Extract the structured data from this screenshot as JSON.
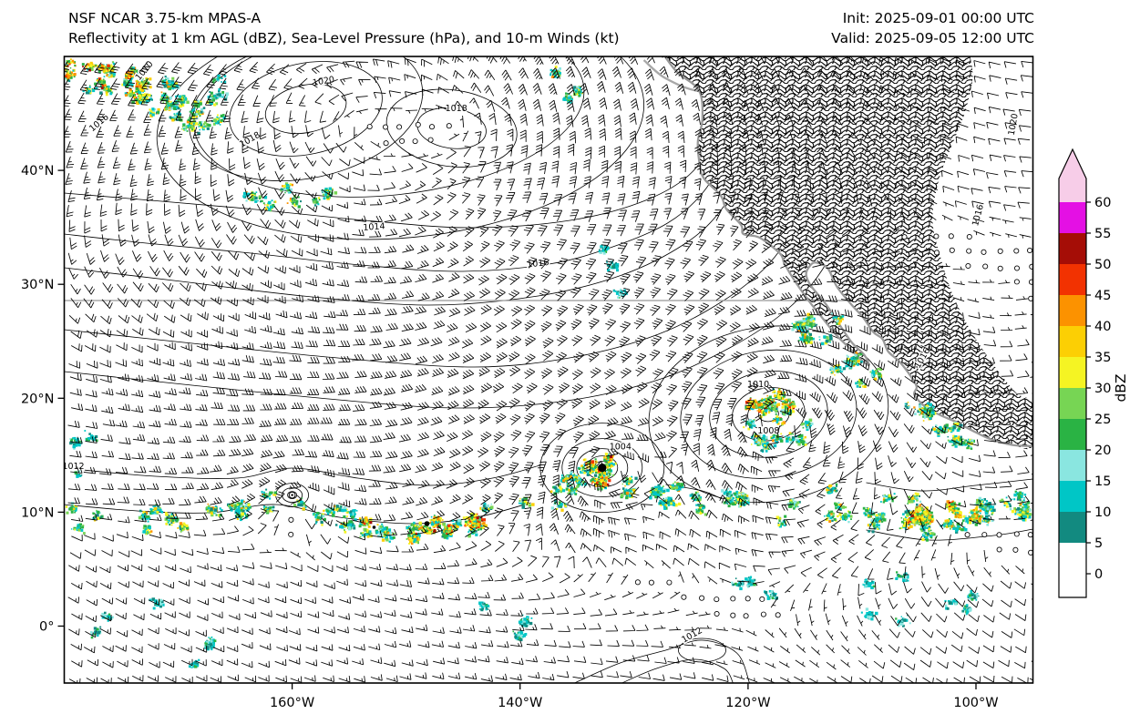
{
  "header": {
    "title_line1": "NSF NCAR 3.75-km MPAS-A",
    "title_line2": "Reflectivity at 1 km AGL (dBZ), Sea-Level Pressure (hPa), and 10-m Winds (kt)",
    "init_label": "Init: 2025-09-01 00:00 UTC",
    "valid_label": "Valid: 2025-09-05 12:00 UTC"
  },
  "chart_data": {
    "type": "heatmap",
    "title": "Reflectivity at 1 km AGL (dBZ), Sea-Level Pressure (hPa), and 10-m Winds (kt)",
    "model": "NSF NCAR 3.75-km MPAS-A",
    "init_time": "2025-09-01 00:00 UTC",
    "valid_time": "2025-09-05 12:00 UTC",
    "map_extent": {
      "lon_min": -180,
      "lon_max": -95,
      "lat_min": -5,
      "lat_max": 50
    },
    "x_ticks": [
      {
        "lon": -160,
        "label": "160°W"
      },
      {
        "lon": -140,
        "label": "140°W"
      },
      {
        "lon": -120,
        "label": "120°W"
      },
      {
        "lon": -100,
        "label": "100°W"
      }
    ],
    "y_ticks": [
      {
        "lat": 40,
        "label": "40°N"
      },
      {
        "lat": 30,
        "label": "30°N"
      },
      {
        "lat": 20,
        "label": "20°N"
      },
      {
        "lat": 10,
        "label": "10°N"
      },
      {
        "lat": 0,
        "label": "0°"
      }
    ],
    "colorbar": {
      "label": "dBZ",
      "tick_values": [
        0,
        5,
        10,
        15,
        20,
        25,
        30,
        35,
        40,
        45,
        50,
        55,
        60
      ],
      "segment_colors": [
        "#ffffff",
        "#128a80",
        "#00c6c6",
        "#8ae6e0",
        "#2ab344",
        "#77d554",
        "#f5f423",
        "#fccf04",
        "#fc9200",
        "#f23201",
        "#a50d06",
        "#e410e4"
      ],
      "under_color": "#ffffff",
      "over_color": "#f7cde8"
    },
    "storms": [
      {
        "name": "tropical-cyclone-1",
        "lon": -132.8,
        "lat": 13.9
      },
      {
        "name": "tropical-cyclone-2",
        "lon": -118.2,
        "lat": 18.6
      },
      {
        "name": "weak-low",
        "lon": -160.0,
        "lat": 11.5
      }
    ],
    "pressure_labels": [
      {
        "value": 1020,
        "lon": -157.2,
        "lat": 47.6,
        "rot": -10
      },
      {
        "value": 1018,
        "lon": -163.6,
        "lat": 42.5,
        "rot": -30
      },
      {
        "value": 1018,
        "lon": -145.6,
        "lat": 45.2,
        "rot": 0
      },
      {
        "value": 1016,
        "lon": -176.8,
        "lat": 44.0,
        "rot": -40
      },
      {
        "value": 1010,
        "lon": -172.8,
        "lat": 48.6,
        "rot": -50
      },
      {
        "value": 1014,
        "lon": -152.8,
        "lat": 34.8,
        "rot": -4
      },
      {
        "value": 1016,
        "lon": -138.4,
        "lat": 31.6,
        "rot": -6
      },
      {
        "value": 1012,
        "lon": -179.2,
        "lat": 13.8,
        "rot": 0
      },
      {
        "value": 1010,
        "lon": -119.1,
        "lat": 21.0,
        "rot": 0
      },
      {
        "value": 1008,
        "lon": -118.2,
        "lat": 16.9,
        "rot": 0
      },
      {
        "value": 1004,
        "lon": -131.2,
        "lat": 15.5,
        "rot": 0
      },
      {
        "value": 1012,
        "lon": -124.8,
        "lat": -1.0,
        "rot": -30
      },
      {
        "value": 1016,
        "lon": -104.5,
        "lat": 23.4,
        "rot": -60
      },
      {
        "value": 1016,
        "lon": -99.6,
        "lat": 36.0,
        "rot": -75
      },
      {
        "value": 1020,
        "lon": -96.5,
        "lat": 44.0,
        "rot": -80
      }
    ],
    "palettes": {
      "convective": {
        "colors": [
          "#00c6c6",
          "#128a80",
          "#8ae6e0",
          "#2ab344",
          "#77d554",
          "#f5f423",
          "#fccf04",
          "#fc9200"
        ],
        "weights": [
          0.26,
          0.12,
          0.1,
          0.22,
          0.12,
          0.1,
          0.05,
          0.03
        ]
      },
      "intense": {
        "colors": [
          "#2ab344",
          "#77d554",
          "#f5f423",
          "#fccf04",
          "#fc9200",
          "#f23201",
          "#a50d06",
          "#00c6c6"
        ],
        "weights": [
          0.16,
          0.14,
          0.22,
          0.16,
          0.14,
          0.08,
          0.04,
          0.06
        ]
      },
      "stratiform": {
        "colors": [
          "#00c6c6",
          "#128a80",
          "#8ae6e0",
          "#2ab344"
        ],
        "weights": [
          0.4,
          0.2,
          0.2,
          0.2
        ]
      },
      "sparse": {
        "colors": [
          "#00c6c6",
          "#128a80",
          "#8ae6e0",
          "#2ab344"
        ],
        "weights": [
          0.45,
          0.25,
          0.2,
          0.1
        ]
      }
    },
    "reflectivity_regions": [
      {
        "name": "nw-frontal-band",
        "type": "band",
        "path": [
          [
            -179.8,
            50
          ],
          [
            -176,
            48.5
          ],
          [
            -171,
            46.5
          ],
          [
            -166.5,
            44.3
          ]
        ],
        "width_deg": 2.6,
        "count": 650,
        "palette": "convective"
      },
      {
        "name": "nw-frontal-core",
        "type": "band",
        "path": [
          [
            -179.8,
            49.8
          ],
          [
            -175.5,
            48.2
          ],
          [
            -171.5,
            46.3
          ]
        ],
        "width_deg": 1.1,
        "count": 280,
        "palette": "intense"
      },
      {
        "name": "top-center-cells",
        "type": "blob",
        "lon": -135.5,
        "lat": 48.5,
        "rx_deg": 1.6,
        "ry_deg": 2.4,
        "count": 90,
        "palette": "convective"
      },
      {
        "name": "north-specks",
        "type": "blob",
        "lon": -166.5,
        "lat": 47.3,
        "rx_deg": 1.2,
        "ry_deg": 1.2,
        "count": 40,
        "palette": "stratiform"
      },
      {
        "name": "midnorth-cells-1",
        "type": "blob",
        "lon": -161.5,
        "lat": 37.8,
        "rx_deg": 2.6,
        "ry_deg": 0.9,
        "count": 120,
        "palette": "convective"
      },
      {
        "name": "midnorth-cells-2",
        "type": "blob",
        "lon": -156.8,
        "lat": 37.5,
        "rx_deg": 1.4,
        "ry_deg": 0.8,
        "count": 60,
        "palette": "convective"
      },
      {
        "name": "offshore-cal-specks",
        "type": "blob",
        "lon": -132.8,
        "lat": 30.0,
        "rx_deg": 1.8,
        "ry_deg": 3.4,
        "count": 80,
        "palette": "sparse"
      },
      {
        "name": "itcz-west",
        "type": "band",
        "path": [
          [
            -179.9,
            9.8
          ],
          [
            -172,
            9.5
          ],
          [
            -166,
            10.5
          ],
          [
            -160.3,
            11.5
          ],
          [
            -154,
            8.8
          ],
          [
            -148,
            8.6
          ],
          [
            -143,
            9.4
          ]
        ],
        "width_deg": 1.8,
        "count": 900,
        "palette": "convective"
      },
      {
        "name": "itcz-west-core",
        "type": "band",
        "path": [
          [
            -154.5,
            9.0
          ],
          [
            -150,
            8.4
          ],
          [
            -146,
            8.9
          ],
          [
            -143.5,
            9.6
          ]
        ],
        "width_deg": 0.9,
        "count": 350,
        "palette": "intense"
      },
      {
        "name": "itcz-mid",
        "type": "band",
        "path": [
          [
            -140,
            10.5
          ],
          [
            -136,
            12
          ],
          [
            -133,
            13.8
          ],
          [
            -128,
            11.5
          ],
          [
            -124,
            11
          ],
          [
            -120.5,
            11.8
          ]
        ],
        "width_deg": 1.6,
        "count": 650,
        "palette": "convective"
      },
      {
        "name": "itcz-east",
        "type": "band",
        "path": [
          [
            -117,
            11
          ],
          [
            -112,
            10.5
          ],
          [
            -108,
            9.5
          ],
          [
            -103.5,
            9.8
          ],
          [
            -99,
            10
          ],
          [
            -95.2,
            10.2
          ]
        ],
        "width_deg": 2.0,
        "count": 800,
        "palette": "convective"
      },
      {
        "name": "itcz-east-core",
        "type": "band",
        "path": [
          [
            -106.5,
            9.6
          ],
          [
            -103,
            9.9
          ],
          [
            -99.5,
            10.1
          ]
        ],
        "width_deg": 1.0,
        "count": 320,
        "palette": "intense"
      },
      {
        "name": "tc1-core",
        "type": "blob",
        "lon": -132.8,
        "lat": 13.9,
        "rx_deg": 1.5,
        "ry_deg": 1.5,
        "count": 170,
        "palette": "intense"
      },
      {
        "name": "tc2-arc",
        "type": "blob",
        "lon": -118.1,
        "lat": 19.3,
        "rx_deg": 1.9,
        "ry_deg": 1.4,
        "count": 260,
        "palette": "intense"
      },
      {
        "name": "tc2-outer",
        "type": "blob",
        "lon": -117.5,
        "lat": 17.5,
        "rx_deg": 3.2,
        "ry_deg": 2.6,
        "count": 260,
        "palette": "convective"
      },
      {
        "name": "baja-coast-echoes",
        "type": "blob",
        "lon": -113.8,
        "lat": 25.8,
        "rx_deg": 2.3,
        "ry_deg": 1.8,
        "count": 260,
        "palette": "convective"
      },
      {
        "name": "gulf-entrance-echoes",
        "type": "blob",
        "lon": -110.5,
        "lat": 22.5,
        "rx_deg": 1.8,
        "ry_deg": 1.5,
        "count": 160,
        "palette": "convective"
      },
      {
        "name": "mainland-coast-echoes",
        "type": "band",
        "path": [
          [
            -107.5,
            21
          ],
          [
            -105,
            19
          ],
          [
            -103,
            17.5
          ],
          [
            -100,
            16.5
          ]
        ],
        "width_deg": 1.5,
        "count": 300,
        "palette": "convective"
      },
      {
        "name": "left-edge-specks",
        "type": "blob",
        "lon": -178.5,
        "lat": 15.0,
        "rx_deg": 1.5,
        "ry_deg": 2.5,
        "count": 60,
        "palette": "sparse"
      },
      {
        "name": "sw-sparse",
        "type": "blob",
        "lon": -173,
        "lat": -1.0,
        "rx_deg": 6,
        "ry_deg": 3.5,
        "count": 150,
        "palette": "sparse"
      },
      {
        "name": "south-sparse-1",
        "type": "blob",
        "lon": -145,
        "lat": 0.0,
        "rx_deg": 6,
        "ry_deg": 2.5,
        "count": 90,
        "palette": "sparse"
      },
      {
        "name": "south-sparse-2",
        "type": "blob",
        "lon": -119,
        "lat": 3.5,
        "rx_deg": 4,
        "ry_deg": 2.5,
        "count": 90,
        "palette": "sparse"
      },
      {
        "name": "se-sparse",
        "type": "blob",
        "lon": -105,
        "lat": 2.5,
        "rx_deg": 5,
        "ry_deg": 3.5,
        "count": 170,
        "palette": "sparse"
      }
    ]
  }
}
